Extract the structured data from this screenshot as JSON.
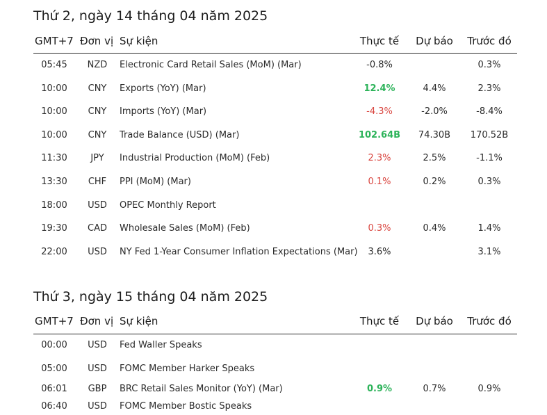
{
  "columns": {
    "time": "GMT+7",
    "currency": "Đơn vị",
    "event": "Sự kiện",
    "actual": "Thực tế",
    "forecast": "Dự báo",
    "previous": "Trước đó"
  },
  "days": [
    {
      "title": "Thứ 2, ngày 14 tháng 04 năm 2025",
      "events": [
        {
          "time": "05:45",
          "currency": "NZD",
          "event": "Electronic Card Retail Sales (MoM) (Mar)",
          "actual": "-0.8%",
          "actual_status": "neutral",
          "forecast": "",
          "previous": "0.3%"
        },
        {
          "time": "10:00",
          "currency": "CNY",
          "event": "Exports (YoY) (Mar)",
          "actual": "12.4%",
          "actual_status": "better",
          "forecast": "4.4%",
          "previous": "2.3%"
        },
        {
          "time": "10:00",
          "currency": "CNY",
          "event": "Imports (YoY) (Mar)",
          "actual": "-4.3%",
          "actual_status": "worse",
          "forecast": "-2.0%",
          "previous": "-8.4%"
        },
        {
          "time": "10:00",
          "currency": "CNY",
          "event": "Trade Balance (USD) (Mar)",
          "actual": "102.64B",
          "actual_status": "better",
          "forecast": "74.30B",
          "previous": "170.52B"
        },
        {
          "time": "11:30",
          "currency": "JPY",
          "event": "Industrial Production (MoM) (Feb)",
          "actual": "2.3%",
          "actual_status": "worse",
          "forecast": "2.5%",
          "previous": "-1.1%"
        },
        {
          "time": "13:30",
          "currency": "CHF",
          "event": "PPI (MoM) (Mar)",
          "actual": "0.1%",
          "actual_status": "worse",
          "forecast": "0.2%",
          "previous": "0.3%"
        },
        {
          "time": "18:00",
          "currency": "USD",
          "event": "OPEC Monthly Report",
          "actual": "",
          "actual_status": "neutral",
          "forecast": "",
          "previous": ""
        },
        {
          "time": "19:30",
          "currency": "CAD",
          "event": "Wholesale Sales (MoM) (Feb)",
          "actual": "0.3%",
          "actual_status": "worse",
          "forecast": "0.4%",
          "previous": "1.4%"
        },
        {
          "time": "22:00",
          "currency": "USD",
          "event": "NY Fed 1-Year Consumer Inflation Expectations (Mar)",
          "actual": "3.6%",
          "actual_status": "neutral",
          "forecast": "",
          "previous": "3.1%"
        }
      ]
    },
    {
      "title": "Thứ 3, ngày 15 tháng 04 năm 2025",
      "events": [
        {
          "time": "00:00",
          "currency": "USD",
          "event": "Fed Waller Speaks",
          "actual": "",
          "actual_status": "neutral",
          "forecast": "",
          "previous": ""
        },
        {
          "time": "05:00",
          "currency": "USD",
          "event": "FOMC Member Harker Speaks",
          "actual": "",
          "actual_status": "neutral",
          "forecast": "",
          "previous": ""
        },
        {
          "time": "06:01",
          "currency": "GBP",
          "event": "BRC Retail Sales Monitor (YoY) (Mar)",
          "actual": "0.9%",
          "actual_status": "better",
          "forecast": "0.7%",
          "previous": "0.9%"
        },
        {
          "time": "06:40",
          "currency": "USD",
          "event": "FOMC Member Bostic Speaks",
          "actual": "",
          "actual_status": "neutral",
          "forecast": "",
          "previous": ""
        }
      ]
    }
  ],
  "colors": {
    "better": "#2db35a",
    "worse": "#d9453f",
    "text": "#2a2a2a",
    "rule": "#2a2a2a"
  }
}
